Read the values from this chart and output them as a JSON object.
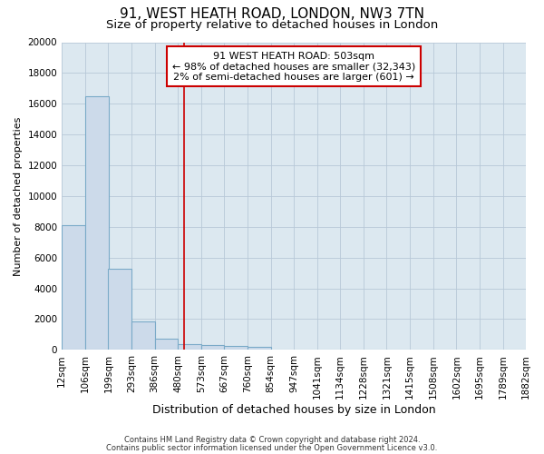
{
  "title1": "91, WEST HEATH ROAD, LONDON, NW3 7TN",
  "title2": "Size of property relative to detached houses in London",
  "xlabel": "Distribution of detached houses by size in London",
  "ylabel": "Number of detached properties",
  "bar_color": "#ccdaea",
  "bar_edge_color": "#7aaac8",
  "plot_bg_color": "#dce8f0",
  "background_color": "#ffffff",
  "grid_color": "#b8c8d8",
  "vline_color": "#cc0000",
  "vline_x": 503,
  "annotation_line1": "91 WEST HEATH ROAD: 503sqm",
  "annotation_line2": "← 98% of detached houses are smaller (32,343)",
  "annotation_line3": "2% of semi-detached houses are larger (601) →",
  "annotation_box_color": "#cc0000",
  "footer1": "Contains HM Land Registry data © Crown copyright and database right 2024.",
  "footer2": "Contains public sector information licensed under the Open Government Licence v3.0.",
  "bin_edges": [
    12,
    106,
    199,
    293,
    386,
    480,
    573,
    667,
    760,
    854,
    947,
    1041,
    1134,
    1228,
    1321,
    1415,
    1508,
    1602,
    1695,
    1789,
    1882
  ],
  "bin_counts": [
    8100,
    16500,
    5300,
    1850,
    750,
    350,
    290,
    230,
    190,
    0,
    0,
    0,
    0,
    0,
    0,
    0,
    0,
    0,
    0,
    0
  ],
  "ylim": [
    0,
    20000
  ],
  "yticks": [
    0,
    2000,
    4000,
    6000,
    8000,
    10000,
    12000,
    14000,
    16000,
    18000,
    20000
  ],
  "title1_fontsize": 11,
  "title2_fontsize": 9.5,
  "ylabel_fontsize": 8,
  "xlabel_fontsize": 9,
  "tick_fontsize": 7.5,
  "annot_fontsize": 8,
  "footer_fontsize": 6
}
